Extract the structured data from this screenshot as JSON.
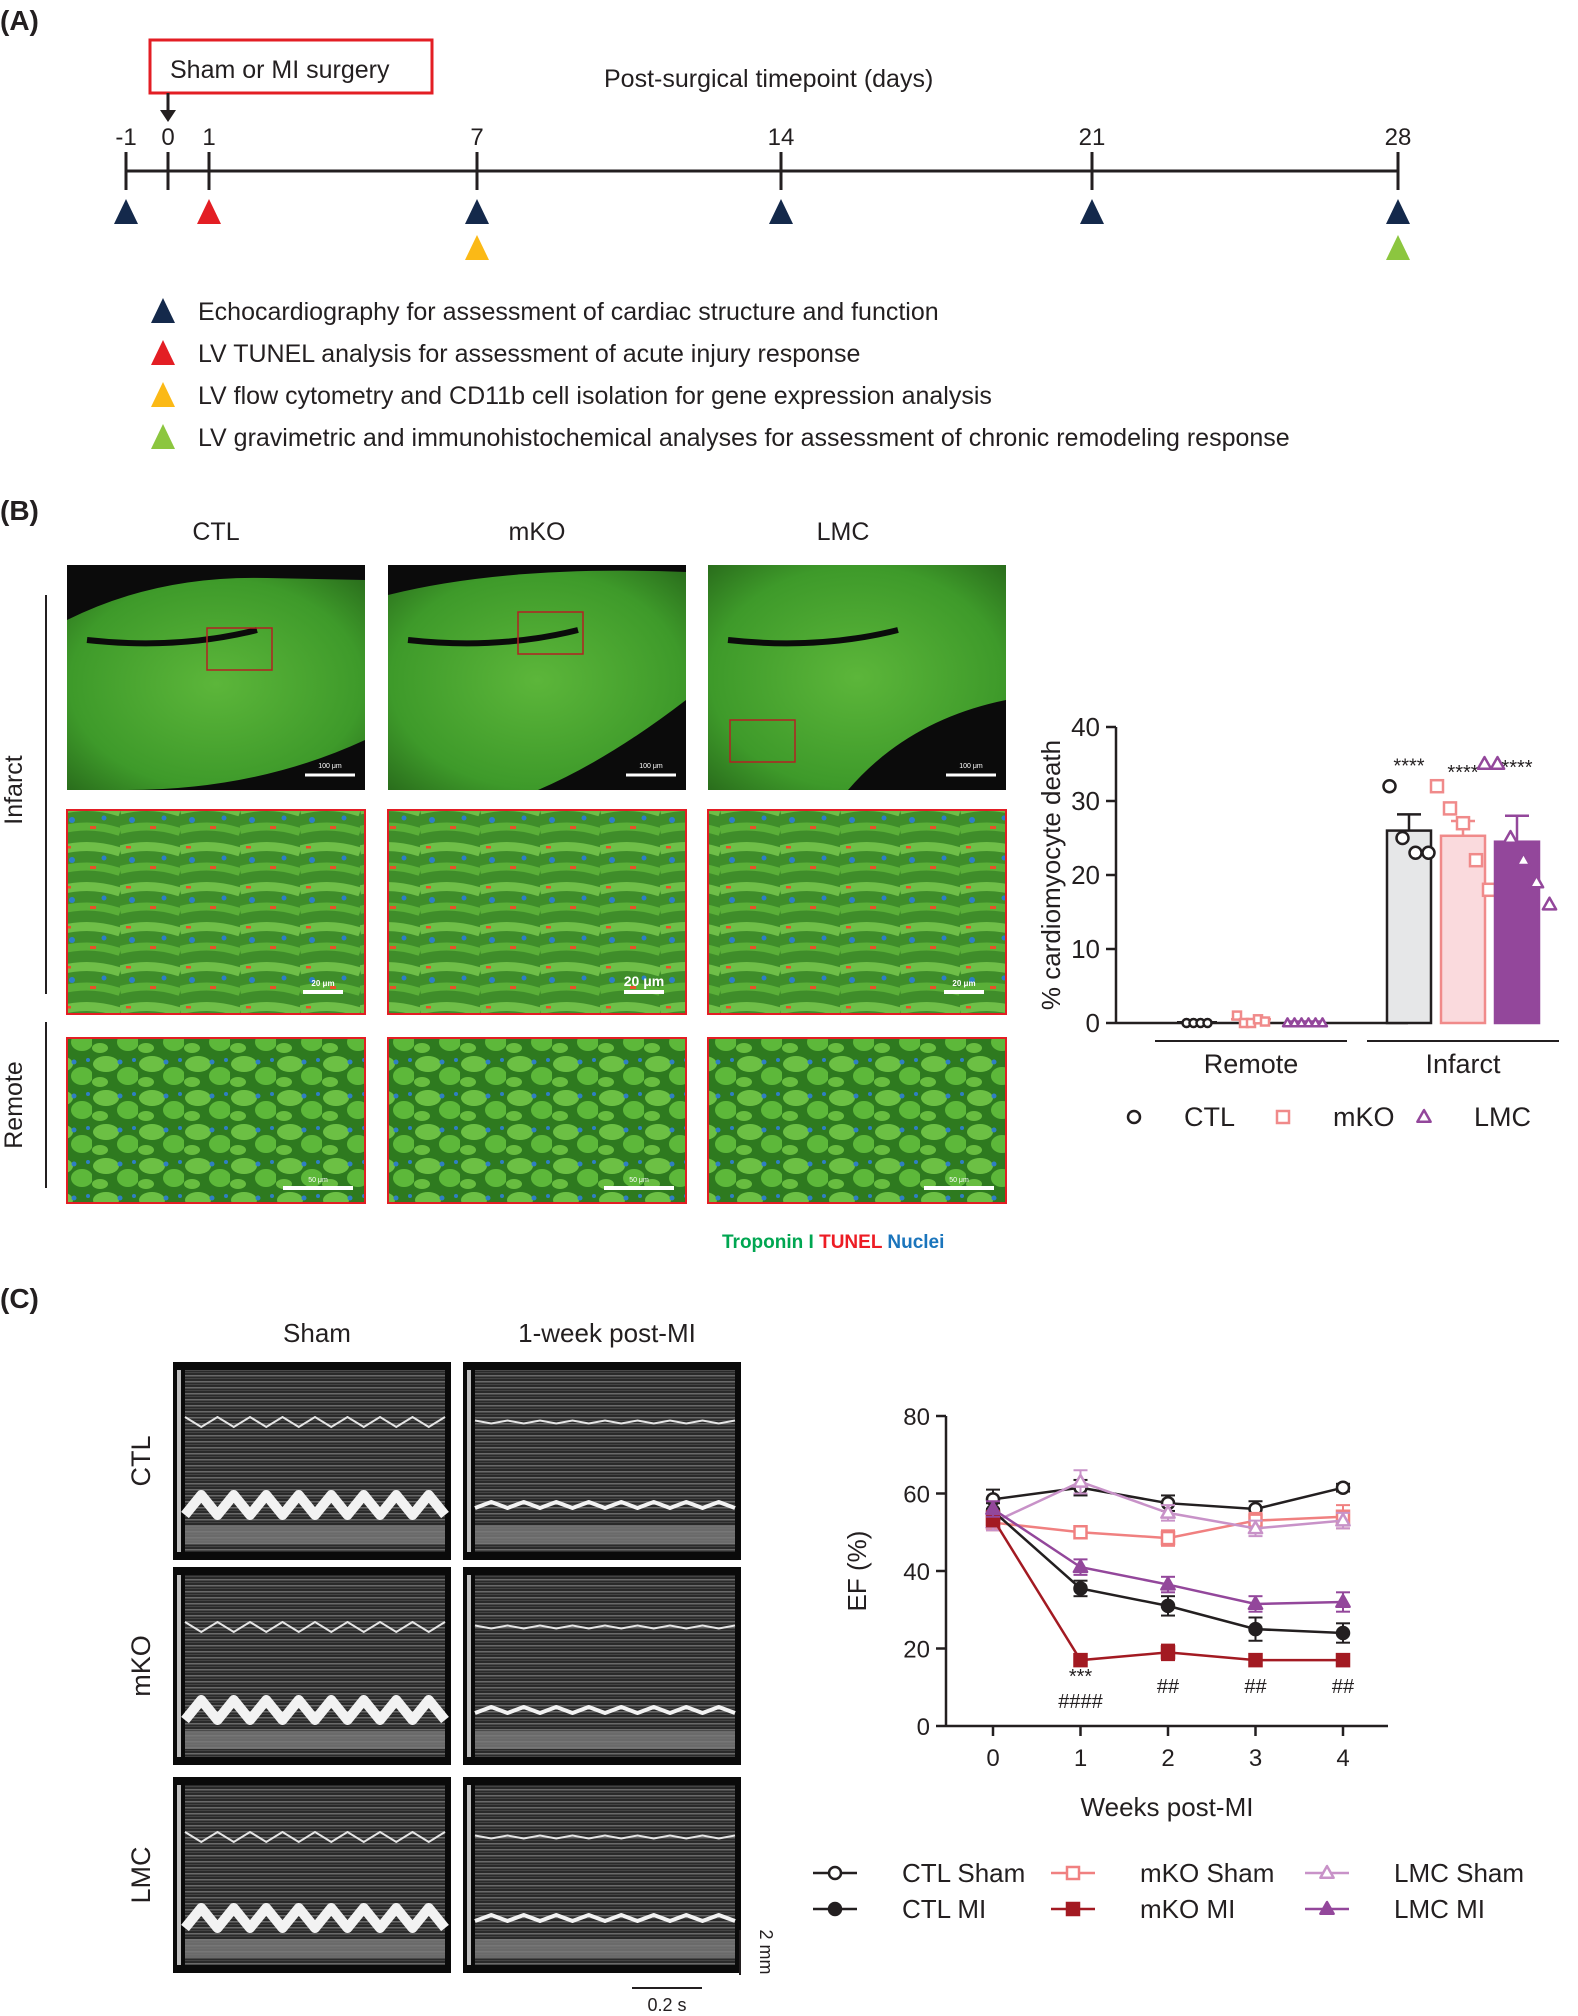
{
  "panel_labels": {
    "a": "(A)",
    "b": "(B)",
    "c": "(C)"
  },
  "timeline": {
    "surgery_label": "Sham or MI surgery",
    "axis_title": "Post-surgical timepoint (days)",
    "ticks": [
      "-1",
      "0",
      "1",
      "7",
      "14",
      "21",
      "28"
    ],
    "legend": [
      {
        "text": "Echocardiography for assessment of cardiac structure and function",
        "color": "#14294b"
      },
      {
        "text": "LV TUNEL analysis for assessment of acute injury response",
        "color": "#e31e24"
      },
      {
        "text": "LV flow cytometry and CD11b cell isolation for gene expression analysis",
        "color": "#fbb916"
      },
      {
        "text": "LV gravimetric and immunohistochemical analyses for assessment of chronic remodeling response",
        "color": "#8cc63f"
      }
    ],
    "markers": [
      {
        "day": "-1",
        "color": "#14294b",
        "row": 1
      },
      {
        "day": "1",
        "color": "#e31e24",
        "row": 1
      },
      {
        "day": "7",
        "color": "#14294b",
        "row": 1
      },
      {
        "day": "7",
        "color": "#fbb916",
        "row": 2
      },
      {
        "day": "14",
        "color": "#14294b",
        "row": 1
      },
      {
        "day": "21",
        "color": "#14294b",
        "row": 1
      },
      {
        "day": "28",
        "color": "#14294b",
        "row": 1
      },
      {
        "day": "28",
        "color": "#8cc63f",
        "row": 2
      }
    ]
  },
  "histology": {
    "columns": [
      "CTL",
      "mKO",
      "LMC"
    ],
    "rows": [
      "Infarct",
      "Remote"
    ],
    "scalebars": {
      "overview": [
        "100 μm",
        "100 μm",
        "100 μm"
      ],
      "zoom": [
        "20 μm",
        "20 μm",
        "20 μm"
      ],
      "remote": [
        "50 μm",
        "50 μm",
        "50 μm"
      ]
    },
    "stain_legend": [
      {
        "text": "Troponin I",
        "color": "#00a651"
      },
      {
        "text": "TUNEL",
        "color": "#ed1c24"
      },
      {
        "text": "Nuclei",
        "color": "#1b75bc"
      }
    ]
  },
  "echo": {
    "columns": [
      "Sham",
      "1-week post-MI"
    ],
    "rows": [
      "CTL",
      "mKO",
      "LMC"
    ],
    "scale_vertical": "2 mm",
    "scale_horizontal": "0.2 s"
  },
  "chart_data": [
    {
      "type": "bar",
      "ylabel": "% cardiomyocyte death",
      "ylim": [
        0,
        40
      ],
      "yticks": [
        "0",
        "10",
        "20",
        "30",
        "40"
      ],
      "groups": [
        "Remote",
        "Infarct"
      ],
      "series": [
        {
          "name": "CTL",
          "values": [
            0.1,
            26
          ],
          "sem": [
            0,
            2.2
          ],
          "color": "#231f20",
          "fill": "#e6e7e8",
          "marker": "circle",
          "points": [
            [
              0,
              0,
              0,
              0
            ],
            [
              32,
              25,
              23,
              23
            ]
          ]
        },
        {
          "name": "mKO",
          "values": [
            0.5,
            25.3
          ],
          "sem": [
            0.2,
            2.0
          ],
          "color": "#f08a8a",
          "fill": "#fadadd",
          "marker": "square",
          "points": [
            [
              1,
              0,
              0,
              0.5,
              0.2
            ],
            [
              32,
              29,
              27,
              22,
              18
            ]
          ]
        },
        {
          "name": "LMC",
          "values": [
            0.2,
            24.5
          ],
          "sem": [
            0,
            3.5
          ],
          "color": "#93479b",
          "fill": "#93479b",
          "marker": "triangle",
          "points": [
            [
              0,
              0,
              0,
              0,
              0,
              0
            ],
            [
              35,
              35,
              25,
              22,
              19,
              16
            ]
          ]
        }
      ],
      "annotations": [
        "****",
        "****",
        "****"
      ],
      "legend_position": "bottom"
    },
    {
      "type": "line",
      "xlabel": "Weeks post-MI",
      "ylabel": "EF (%)",
      "x": [
        0,
        1,
        2,
        3,
        4
      ],
      "xlim": [
        -1,
        5
      ],
      "ylim": [
        0,
        80
      ],
      "yticks": [
        "0",
        "20",
        "40",
        "60",
        "80"
      ],
      "series": [
        {
          "name": "CTL Sham",
          "values": [
            58.5,
            61.5,
            57.5,
            56,
            61.5
          ],
          "sem": [
            2.5,
            2,
            2,
            2,
            1
          ],
          "color": "#231f20",
          "marker": "circle",
          "filled": false
        },
        {
          "name": "mKO Sham",
          "values": [
            52.5,
            50,
            48.5,
            53,
            54
          ],
          "sem": [
            2,
            1.5,
            2,
            2,
            3
          ],
          "color": "#f08080",
          "marker": "square",
          "filled": false
        },
        {
          "name": "LMC Sham",
          "values": [
            52.5,
            63,
            55,
            51,
            53
          ],
          "sem": [
            2,
            3,
            2,
            2,
            2
          ],
          "color": "#c892c8",
          "marker": "triangle",
          "filled": false
        },
        {
          "name": "CTL MI",
          "values": [
            55.5,
            35.5,
            31,
            25,
            24
          ],
          "sem": [
            2,
            2,
            2.5,
            3,
            2.5
          ],
          "color": "#231f20",
          "marker": "circle",
          "filled": true
        },
        {
          "name": "mKO MI",
          "values": [
            53.5,
            17,
            19,
            17,
            17
          ],
          "sem": [
            2,
            1.5,
            2,
            1,
            1
          ],
          "color": "#a31a22",
          "marker": "square",
          "filled": true
        },
        {
          "name": "LMC MI",
          "values": [
            56,
            41,
            36.5,
            31.5,
            32
          ],
          "sem": [
            2,
            2,
            2,
            2,
            2.5
          ],
          "color": "#93479b",
          "marker": "triangle",
          "filled": true
        }
      ],
      "annotations": [
        {
          "x": 1,
          "lines": [
            "***",
            "####"
          ]
        },
        {
          "x": 2,
          "lines": [
            "##"
          ]
        },
        {
          "x": 3,
          "lines": [
            "##"
          ]
        },
        {
          "x": 4,
          "lines": [
            "##"
          ]
        }
      ],
      "legend_position": "bottom"
    }
  ]
}
